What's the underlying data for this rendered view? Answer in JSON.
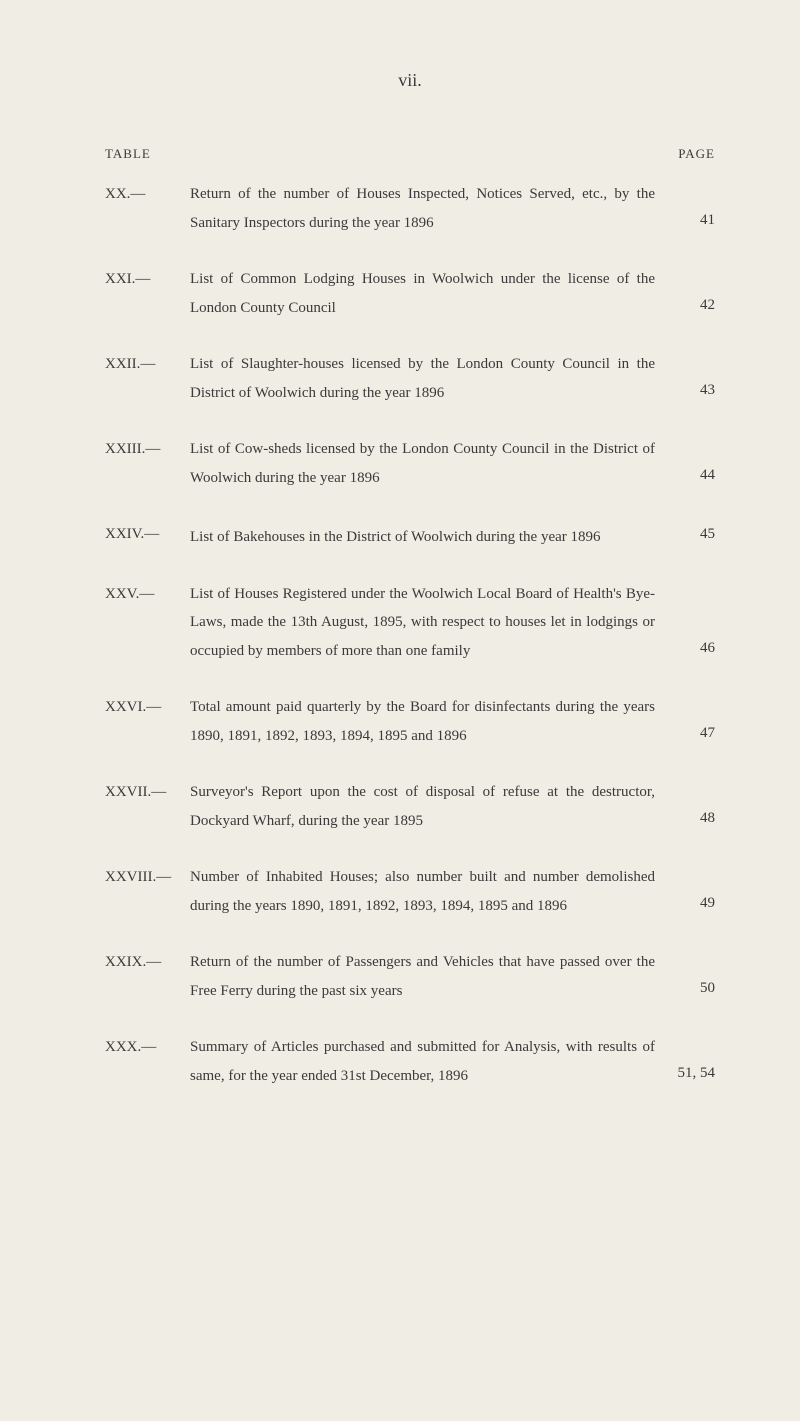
{
  "pageNumber": "vii.",
  "header": {
    "left": "TABLE",
    "right": "PAGE"
  },
  "entries": [
    {
      "num": "XX.—",
      "text": "Return of the number of Houses Inspected, Notices Served, etc., by the Sanitary Inspectors during the year 1896",
      "page": "41"
    },
    {
      "num": "XXI.—",
      "text": "List of Common Lodging Houses in Woolwich under the license of the London County Council",
      "page": "42"
    },
    {
      "num": "XXII.—",
      "text": "List of Slaughter-houses licensed by the London County Council in the District of Woolwich during the year 1896",
      "page": "43"
    },
    {
      "num": "XXIII.—",
      "text": "List of Cow-sheds licensed by the London County Council in the District of Woolwich during the year 1896",
      "page": "44"
    },
    {
      "num": "XXIV.—",
      "text": "List of Bakehouses in the District of Woolwich during the year 1896",
      "page": "45"
    },
    {
      "num": "XXV.—",
      "text": "List of Houses Registered under the Woolwich Local Board of Health's Bye-Laws, made the 13th August, 1895, with respect to houses let in lodgings or occupied by members of more than one family",
      "page": "46"
    },
    {
      "num": "XXVI.—",
      "text": "Total amount paid quarterly by the Board for disinfectants during the years 1890, 1891, 1892, 1893, 1894, 1895 and 1896",
      "page": "47"
    },
    {
      "num": "XXVII.—",
      "text": "Surveyor's Report upon the cost of disposal of refuse at the destructor, Dockyard Wharf, during the year 1895",
      "page": "48"
    },
    {
      "num": "XXVIII.—",
      "text": "Number of Inhabited Houses; also number built and number demolished during the years 1890, 1891, 1892, 1893, 1894, 1895 and 1896",
      "page": "49"
    },
    {
      "num": "XXIX.—",
      "text": "Return of the number of Passengers and Vehicles that have passed over the Free Ferry during the past six years",
      "page": "50"
    },
    {
      "num": "XXX.—",
      "text": "Summary of Articles purchased and submitted for Analysis, with results of same, for the year ended 31st December, 1896",
      "page": "51, 54"
    }
  ]
}
